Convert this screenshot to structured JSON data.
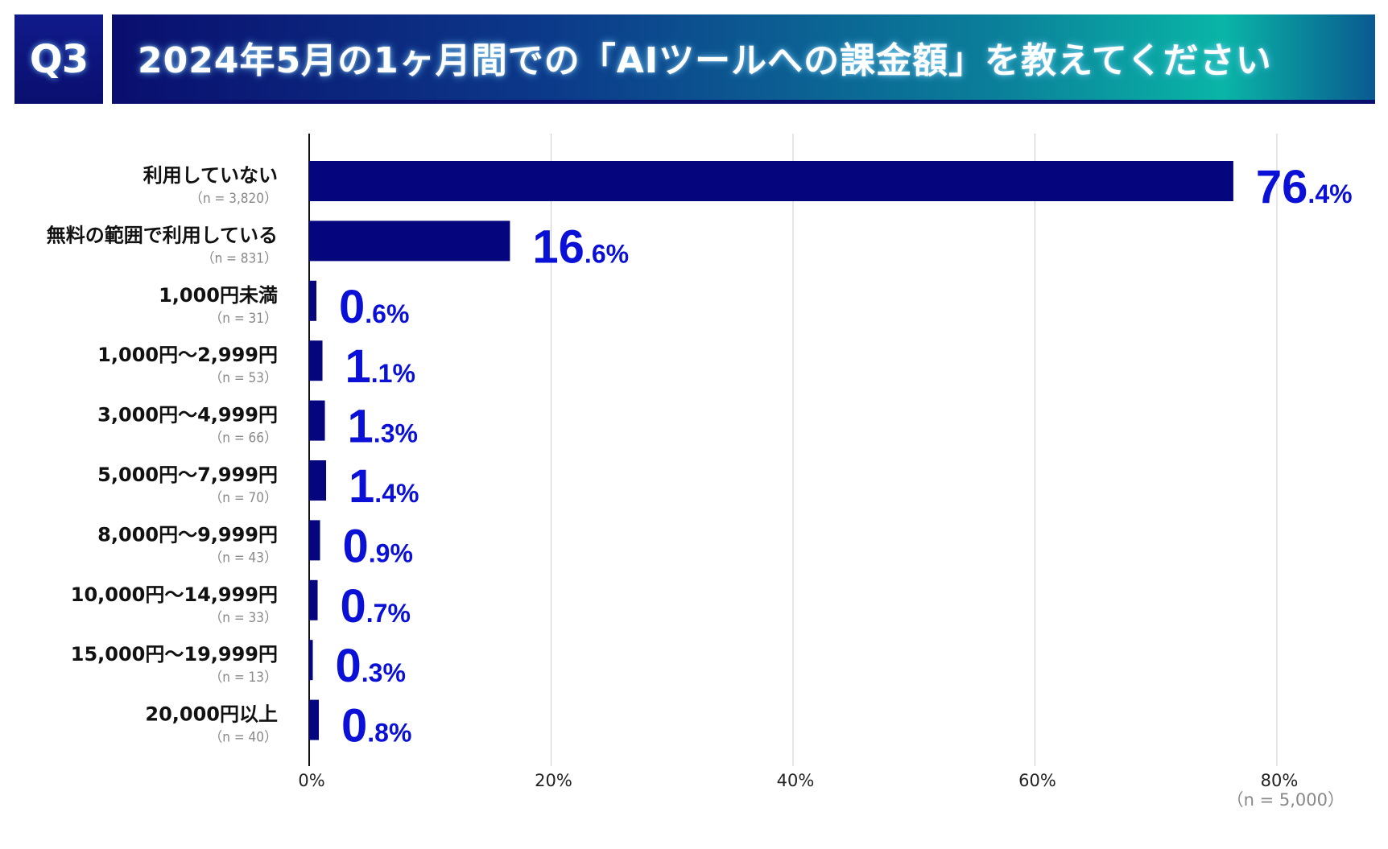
{
  "header": {
    "badge": "Q3",
    "title": "2024年5月の1ヶ月間での「AIツールへの課金額」を教えてください"
  },
  "colors": {
    "bar": "#05057e",
    "value_text": "#0a10d6",
    "header_dark": "#0a0f6e",
    "header_teal": "#0ab5a6"
  },
  "chart_data": {
    "type": "bar",
    "orientation": "horizontal",
    "title": "2024年5月の1ヶ月間での「AIツールへの課金額」を教えてください",
    "categories": [
      "利用していない",
      "無料の範囲で利用している",
      "1,000円未満",
      "1,000円～2,999円",
      "3,000円～4,999円",
      "5,000円～7,999円",
      "8,000円～9,999円",
      "10,000円～14,999円",
      "15,000円～19,999円",
      "20,000円以上"
    ],
    "sample_sizes": [
      "（n = 3,820）",
      "（n = 831）",
      "（n = 31）",
      "（n = 53）",
      "（n = 66）",
      "（n = 70）",
      "（n = 43）",
      "（n = 33）",
      "（n = 13）",
      "（n = 40）"
    ],
    "values": [
      76.4,
      16.6,
      0.6,
      1.1,
      1.3,
      1.4,
      0.9,
      0.7,
      0.3,
      0.8
    ],
    "value_int_labels": [
      "76",
      "16",
      "0",
      "1",
      "1",
      "1",
      "0",
      "0",
      "0",
      "0"
    ],
    "value_dec_labels": [
      ".4%",
      ".6%",
      ".6%",
      ".1%",
      ".3%",
      ".4%",
      ".9%",
      ".7%",
      ".3%",
      ".8%"
    ],
    "xticks": [
      0,
      20,
      40,
      60,
      80
    ],
    "xtick_labels": [
      "0%",
      "20%",
      "40%",
      "60%",
      "80%"
    ],
    "xlim": [
      0,
      80
    ],
    "grid": true,
    "total_n": "（n = 5,000）",
    "xlabel": "",
    "ylabel": ""
  }
}
